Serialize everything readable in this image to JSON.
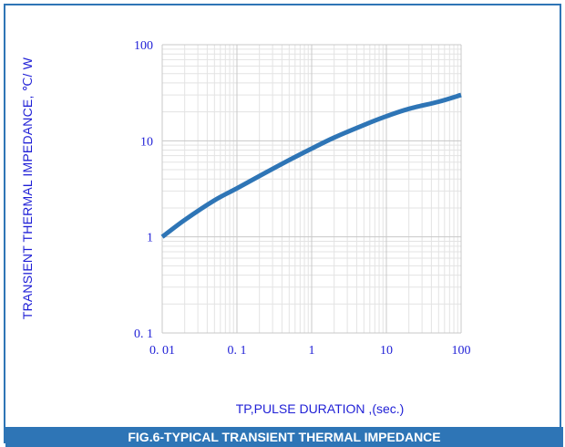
{
  "chart_data": {
    "type": "line",
    "title": "FIG.6-TYPICAL TRANSIENT THERMAL IMPEDANCE",
    "xlabel": "TP,PULSE DURATION ,(sec.)",
    "ylabel": "TRANSIENT THERMAL IMPEDANCE, ℃/ W",
    "x_scale": "log",
    "y_scale": "log",
    "xlim": [
      0.01,
      100
    ],
    "ylim": [
      0.1,
      100
    ],
    "x_ticks": [
      "0. 01",
      "0. 1",
      "1",
      "10",
      "100"
    ],
    "y_ticks": [
      "0. 1",
      "1",
      "10",
      "100"
    ],
    "grid": true,
    "series": [
      {
        "color": "#2e75b6",
        "x": [
          0.01,
          0.02,
          0.05,
          0.1,
          0.2,
          0.5,
          1,
          2,
          5,
          10,
          20,
          50,
          100
        ],
        "y": [
          1.0,
          1.5,
          2.4,
          3.2,
          4.3,
          6.3,
          8.3,
          10.8,
          14.6,
          18.0,
          21.5,
          25.5,
          30.0
        ]
      }
    ]
  }
}
